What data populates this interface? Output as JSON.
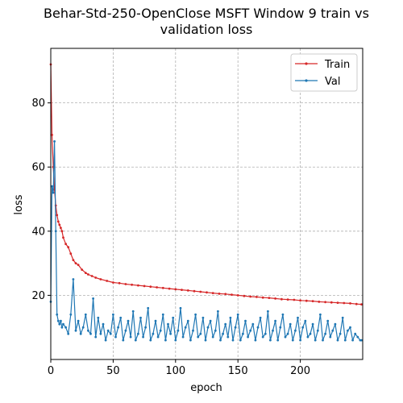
{
  "chart_data": {
    "type": "line",
    "title": "Behar-Std-250-OpenClose MSFT Window 9 train vs validation loss",
    "title_lines": [
      "Behar-Std-250-OpenClose MSFT Window 9 train vs",
      "validation loss"
    ],
    "xlabel": "epoch",
    "ylabel": "loss",
    "xlim": [
      0,
      250
    ],
    "ylim": [
      0,
      97
    ],
    "xticks": [
      0,
      50,
      100,
      150,
      200
    ],
    "yticks": [
      20,
      40,
      60,
      80
    ],
    "grid": true,
    "legend_position": "top-right",
    "colors": {
      "train": "#d62728",
      "val": "#1f77b4"
    },
    "series": [
      {
        "name": "Train",
        "color": "#d62728",
        "x": [
          0,
          1,
          2,
          3,
          4,
          5,
          6,
          7,
          8,
          9,
          10,
          12,
          14,
          16,
          18,
          20,
          22,
          25,
          28,
          30,
          33,
          36,
          40,
          45,
          50,
          55,
          60,
          65,
          70,
          75,
          80,
          85,
          90,
          95,
          100,
          105,
          110,
          115,
          120,
          125,
          130,
          135,
          140,
          145,
          150,
          155,
          160,
          165,
          170,
          175,
          180,
          185,
          190,
          195,
          200,
          205,
          210,
          215,
          220,
          225,
          230,
          235,
          240,
          245,
          249
        ],
        "y": [
          92,
          70,
          60,
          53,
          48,
          45,
          43,
          42,
          41,
          40,
          38,
          36,
          35,
          33,
          31,
          30,
          29.5,
          28,
          27,
          26.5,
          26,
          25.5,
          25,
          24.5,
          24,
          23.8,
          23.5,
          23.3,
          23.1,
          22.9,
          22.7,
          22.5,
          22.3,
          22.1,
          21.9,
          21.7,
          21.5,
          21.3,
          21.1,
          20.9,
          20.7,
          20.5,
          20.4,
          20.2,
          20,
          19.8,
          19.6,
          19.5,
          19.3,
          19.2,
          19,
          18.8,
          18.7,
          18.6,
          18.4,
          18.3,
          18.2,
          18,
          17.9,
          17.8,
          17.7,
          17.6,
          17.5,
          17.3,
          17.2
        ]
      },
      {
        "name": "Val",
        "color": "#1f77b4",
        "x": [
          0,
          1,
          2,
          3,
          4,
          5,
          6,
          7,
          8,
          9,
          10,
          12,
          14,
          16,
          18,
          20,
          22,
          24,
          26,
          28,
          30,
          32,
          34,
          36,
          38,
          40,
          42,
          44,
          46,
          48,
          50,
          52,
          54,
          56,
          58,
          60,
          62,
          64,
          66,
          68,
          70,
          72,
          74,
          76,
          78,
          80,
          82,
          84,
          86,
          88,
          90,
          92,
          94,
          96,
          98,
          100,
          102,
          104,
          106,
          108,
          110,
          112,
          114,
          116,
          118,
          120,
          122,
          124,
          126,
          128,
          130,
          132,
          134,
          136,
          138,
          140,
          142,
          144,
          146,
          148,
          150,
          152,
          154,
          156,
          158,
          160,
          162,
          164,
          166,
          168,
          170,
          172,
          174,
          176,
          178,
          180,
          182,
          184,
          186,
          188,
          190,
          192,
          194,
          196,
          198,
          200,
          202,
          204,
          206,
          208,
          210,
          212,
          214,
          216,
          218,
          220,
          222,
          224,
          226,
          228,
          230,
          232,
          234,
          236,
          238,
          240,
          242,
          244,
          246,
          248,
          249
        ],
        "y": [
          18,
          54,
          52,
          68,
          40,
          14,
          12,
          11,
          12,
          10,
          11,
          10,
          8,
          14,
          25,
          9,
          12,
          8,
          10,
          14,
          9,
          8,
          19,
          7,
          13,
          8,
          11,
          6,
          9,
          8,
          14,
          7,
          10,
          13,
          6,
          9,
          12,
          7,
          15,
          6,
          8,
          13,
          7,
          10,
          16,
          6,
          8,
          12,
          7,
          9,
          14,
          6,
          11,
          8,
          13,
          6,
          9,
          16,
          7,
          10,
          12,
          6,
          9,
          14,
          7,
          8,
          13,
          6,
          10,
          12,
          7,
          9,
          15,
          6,
          8,
          11,
          7,
          13,
          6,
          10,
          14,
          6,
          8,
          12,
          7,
          9,
          11,
          6,
          10,
          13,
          7,
          8,
          15,
          6,
          9,
          12,
          6,
          10,
          14,
          7,
          8,
          11,
          6,
          9,
          13,
          6,
          10,
          12,
          7,
          8,
          11,
          6,
          9,
          14,
          6,
          8,
          12,
          7,
          9,
          11,
          6,
          8,
          13,
          6,
          9,
          10,
          6,
          8,
          7,
          6,
          6
        ]
      }
    ]
  }
}
